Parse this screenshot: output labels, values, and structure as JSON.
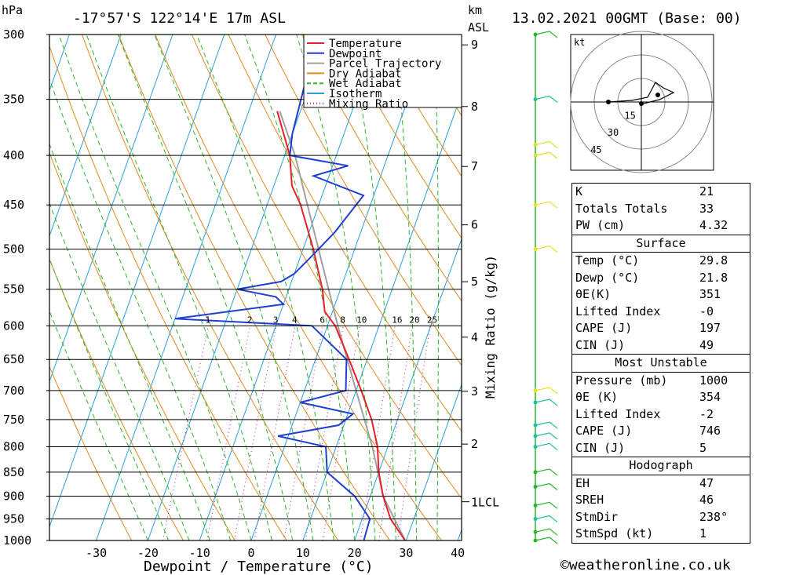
{
  "header": {
    "hpa_unit": "hPa",
    "location": "-17°57'S  122°14'E  17m  ASL",
    "km_unit": "km",
    "asl": "ASL",
    "datetime": "13.02.2021  00GMT  (Base: 00)"
  },
  "chart_data": {
    "type": "skew-t log-p",
    "xlabel": "Dewpoint / Temperature (°C)",
    "ylabel": "hPa",
    "secondary_ylabel": "Mixing Ratio (g/kg)",
    "x_ticks": [
      -30,
      -20,
      -10,
      0,
      10,
      20,
      30,
      40
    ],
    "pressure_levels": [
      300,
      350,
      400,
      450,
      500,
      550,
      600,
      650,
      700,
      750,
      800,
      850,
      900,
      950,
      1000
    ],
    "height_km_ticks": [
      2,
      3,
      4,
      5,
      6,
      7,
      8,
      9
    ],
    "lcl_label": "1LCL",
    "mixing_ratio_labels": [
      "1",
      "2",
      "3",
      "4",
      "6",
      "8",
      "10",
      "16",
      "20",
      "25"
    ],
    "legend": [
      {
        "name": "Temperature",
        "color": "#e8202a"
      },
      {
        "name": "Dewpoint",
        "color": "#1f3fd0"
      },
      {
        "name": "Parcel Trajectory",
        "color": "#a0a0a0"
      },
      {
        "name": "Dry Adiabat",
        "color": "#e08a20"
      },
      {
        "name": "Wet Adiabat",
        "color": "#2bb52b"
      },
      {
        "name": "Isotherm",
        "color": "#2a9fdc"
      },
      {
        "name": "Mixing Ratio",
        "color": "#c0188a"
      }
    ],
    "temperature": [
      [
        1000,
        29.8
      ],
      [
        950,
        25.5
      ],
      [
        900,
        22.5
      ],
      [
        850,
        20
      ],
      [
        800,
        18
      ],
      [
        750,
        15
      ],
      [
        700,
        11
      ],
      [
        650,
        6.5
      ],
      [
        600,
        1.5
      ],
      [
        580,
        -1.5
      ],
      [
        550,
        -3.5
      ],
      [
        500,
        -8
      ],
      [
        450,
        -13.5
      ],
      [
        430,
        -16.5
      ],
      [
        400,
        -19
      ],
      [
        360,
        -24.5
      ]
    ],
    "dewpoint": [
      [
        1000,
        21.8
      ],
      [
        950,
        21.5
      ],
      [
        900,
        17
      ],
      [
        850,
        10
      ],
      [
        800,
        8
      ],
      [
        780,
        -2
      ],
      [
        760,
        9
      ],
      [
        740,
        11
      ],
      [
        720,
        0
      ],
      [
        700,
        8
      ],
      [
        650,
        6
      ],
      [
        600,
        -3
      ],
      [
        590,
        -30
      ],
      [
        570,
        -10
      ],
      [
        560,
        -12
      ],
      [
        550,
        -20
      ],
      [
        540,
        -12
      ],
      [
        530,
        -10
      ],
      [
        510,
        -8
      ],
      [
        480,
        -5
      ],
      [
        440,
        -2
      ],
      [
        420,
        -13
      ],
      [
        410,
        -7
      ],
      [
        400,
        -19
      ],
      [
        380,
        -20
      ],
      [
        300,
        -22
      ]
    ],
    "parcel": [
      [
        1000,
        29.8
      ],
      [
        900,
        22.5
      ],
      [
        800,
        17
      ],
      [
        700,
        10
      ],
      [
        600,
        2
      ],
      [
        500,
        -7
      ],
      [
        400,
        -18
      ],
      [
        360,
        -24
      ]
    ]
  },
  "hodograph": {
    "unit": "kt",
    "ring_labels": [
      "15",
      "30",
      "45"
    ]
  },
  "indices": {
    "k_label": "K",
    "k_value": "21",
    "tt_label": "Totals Totals",
    "tt_value": "33",
    "pw_label": "PW (cm)",
    "pw_value": "4.32"
  },
  "surface": {
    "title": "Surface",
    "temp_label": "Temp (°C)",
    "temp_value": "29.8",
    "dewp_label": "Dewp (°C)",
    "dewp_value": "21.8",
    "theta_label": "θE(K)",
    "theta_value": "351",
    "li_label": "Lifted Index",
    "li_value": "-0",
    "cape_label": "CAPE (J)",
    "cape_value": "197",
    "cin_label": "CIN (J)",
    "cin_value": "49"
  },
  "most_unstable": {
    "title": "Most Unstable",
    "pressure_label": "Pressure (mb)",
    "pressure_value": "1000",
    "theta_label": "θE (K)",
    "theta_value": "354",
    "li_label": "Lifted Index",
    "li_value": "-2",
    "cape_label": "CAPE (J)",
    "cape_value": "746",
    "cin_label": "CIN (J)",
    "cin_value": "5"
  },
  "hodo_params": {
    "title": "Hodograph",
    "eh_label": "EH",
    "eh_value": "47",
    "sreh_label": "SREH",
    "sreh_value": "46",
    "stmdir_label": "StmDir",
    "stmdir_value": "238°",
    "stmspd_label": "StmSpd (kt)",
    "stmspd_value": "1"
  },
  "credit": "©weatheronline.co.uk"
}
